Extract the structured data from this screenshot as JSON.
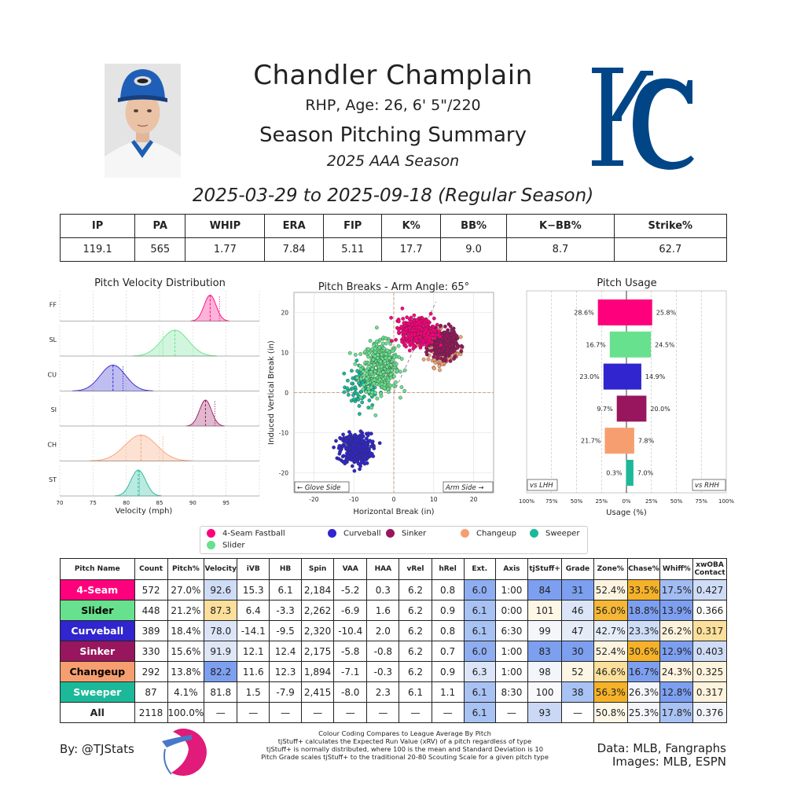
{
  "header": {
    "name": "Chandler Champlain",
    "subtitle": "RHP, Age: 26, 6' 5\"/220",
    "summary_title": "Season Pitching Summary",
    "season": "2025 AAA Season",
    "date_range": "2025-03-29 to 2025-09-18 (Regular Season)"
  },
  "stats": {
    "headers": [
      "IP",
      "PA",
      "WHIP",
      "ERA",
      "FIP",
      "K%",
      "BB%",
      "K−BB%",
      "Strike%"
    ],
    "values": [
      "119.1",
      "565",
      "1.77",
      "7.84",
      "5.11",
      "17.7",
      "9.0",
      "8.7",
      "62.7"
    ]
  },
  "colors": {
    "FF": "#FF007D",
    "SL": "#67E18D",
    "CU": "#3025CE",
    "SI": "#98165D",
    "CH": "#F79E70",
    "ST": "#1BB999",
    "kc_blue": "#004687"
  },
  "chart_data": [
    {
      "type": "area",
      "title": "Pitch Velocity Distribution",
      "xlabel": "Velocity (mph)",
      "xlim": [
        70,
        100
      ],
      "xticks": [
        70,
        75,
        80,
        85,
        90,
        95
      ],
      "series": [
        {
          "name": "FF",
          "mean": 92.6,
          "sd": 0.9,
          "league_mean": 94.0
        },
        {
          "name": "SL",
          "mean": 87.3,
          "sd": 2.0,
          "league_mean": 85.5
        },
        {
          "name": "CU",
          "mean": 78.0,
          "sd": 1.9,
          "league_mean": 79.5
        },
        {
          "name": "SI",
          "mean": 91.9,
          "sd": 0.9,
          "league_mean": 93.3
        },
        {
          "name": "CH",
          "mean": 82.2,
          "sd": 2.4,
          "league_mean": 85.5
        },
        {
          "name": "ST",
          "mean": 81.8,
          "sd": 1.1,
          "league_mean": 82.0
        }
      ]
    },
    {
      "type": "scatter",
      "title": "Pitch Breaks - Arm Angle: 65°",
      "xlabel": "Horizontal Break (in)",
      "ylabel": "Induced Vertical Break (in)",
      "xlim": [
        -25,
        25
      ],
      "ylim": [
        -25,
        25
      ],
      "xticks": [
        -20,
        -10,
        0,
        10,
        20
      ],
      "yticks": [
        -20,
        -10,
        0,
        10,
        20
      ],
      "annotations": [
        "← Glove Side",
        "Arm Side →"
      ],
      "series": [
        {
          "name": "ST",
          "count": 87,
          "hb": -7.9,
          "ivb": 1.5,
          "sx": 2.2,
          "sy": 2.6
        },
        {
          "name": "SL",
          "count": 448,
          "hb": -3.3,
          "ivb": 6.4,
          "sx": 2.2,
          "sy": 3.0
        },
        {
          "name": "CU",
          "count": 389,
          "hb": -9.5,
          "ivb": -14.1,
          "sx": 1.9,
          "sy": 1.9
        },
        {
          "name": "CH",
          "count": 292,
          "hb": 12.3,
          "ivb": 11.6,
          "sx": 1.7,
          "sy": 1.9
        },
        {
          "name": "SI",
          "count": 330,
          "hb": 12.4,
          "ivb": 12.1,
          "sx": 1.6,
          "sy": 1.7
        },
        {
          "name": "FF",
          "count": 572,
          "hb": 6.1,
          "ivb": 15.3,
          "sx": 2.0,
          "sy": 1.6
        }
      ]
    },
    {
      "type": "bar",
      "title": "Pitch Usage",
      "xlabel": "Usage (%)",
      "xlim": [
        -100,
        100
      ],
      "xticks": [
        "100%",
        "75%",
        "50%",
        "25%",
        "0%",
        "25%",
        "50%",
        "75%",
        "100%"
      ],
      "annotations": [
        "vs LHH",
        "vs RHH"
      ],
      "categories": [
        "FF",
        "SL",
        "CU",
        "SI",
        "CH",
        "ST"
      ],
      "series": [
        {
          "name": "vs LHH",
          "values": [
            28.6,
            16.7,
            23.0,
            9.7,
            21.7,
            0.3
          ]
        },
        {
          "name": "vs RHH",
          "values": [
            25.8,
            24.5,
            14.9,
            20.0,
            7.8,
            7.0
          ]
        }
      ]
    }
  ],
  "legend": [
    "4-Seam Fastball",
    "Curveball",
    "Sinker",
    "Changeup",
    "Sweeper",
    "Slider"
  ],
  "legend_codes": [
    "FF",
    "CU",
    "SI",
    "CH",
    "ST",
    "SL"
  ],
  "pitch_table": {
    "headers": [
      "Pitch Name",
      "Count",
      "Pitch%",
      "Velocity",
      "iVB",
      "HB",
      "Spin",
      "VAA",
      "HAA",
      "vRel",
      "hRel",
      "Ext.",
      "Axis",
      "tjStuff+",
      "Grade",
      "Zone%",
      "Chase%",
      "Whiff%",
      "xwOBA\nContact"
    ],
    "rows": [
      {
        "code": "FF",
        "cells": [
          "4-Seam",
          "572",
          "27.0%",
          "92.6",
          "15.3",
          "6.1",
          "2,184",
          "-5.2",
          "0.3",
          "6.2",
          "0.8",
          "6.0",
          "1:00",
          "84",
          "31",
          "52.4%",
          "33.5%",
          "17.5%",
          "0.427"
        ]
      },
      {
        "code": "SL",
        "cells": [
          "Slider",
          "448",
          "21.2%",
          "87.3",
          "6.4",
          "-3.3",
          "2,262",
          "-6.9",
          "1.6",
          "6.2",
          "0.9",
          "6.1",
          "0:00",
          "101",
          "46",
          "56.0%",
          "18.8%",
          "13.9%",
          "0.366"
        ]
      },
      {
        "code": "CU",
        "cells": [
          "Curveball",
          "389",
          "18.4%",
          "78.0",
          "-14.1",
          "-9.5",
          "2,320",
          "-10.4",
          "2.0",
          "6.2",
          "0.8",
          "6.1",
          "6:30",
          "99",
          "47",
          "42.7%",
          "23.3%",
          "26.2%",
          "0.317"
        ]
      },
      {
        "code": "SI",
        "cells": [
          "Sinker",
          "330",
          "15.6%",
          "91.9",
          "12.1",
          "12.4",
          "2,175",
          "-5.8",
          "-0.8",
          "6.2",
          "0.7",
          "6.0",
          "1:00",
          "83",
          "30",
          "52.4%",
          "30.6%",
          "12.9%",
          "0.403"
        ]
      },
      {
        "code": "CH",
        "cells": [
          "Changeup",
          "292",
          "13.8%",
          "82.2",
          "11.6",
          "12.3",
          "1,894",
          "-7.1",
          "-0.3",
          "6.2",
          "0.9",
          "6.3",
          "1:00",
          "98",
          "52",
          "46.6%",
          "16.7%",
          "24.3%",
          "0.325"
        ]
      },
      {
        "code": "ST",
        "cells": [
          "Sweeper",
          "87",
          "4.1%",
          "81.8",
          "1.5",
          "-7.9",
          "2,415",
          "-8.0",
          "2.3",
          "6.1",
          "1.1",
          "6.1",
          "8:30",
          "100",
          "38",
          "56.3%",
          "26.3%",
          "12.8%",
          "0.317"
        ]
      },
      {
        "code": "ALL",
        "cells": [
          "All",
          "2118",
          "100.0%",
          "—",
          "—",
          "—",
          "—",
          "—",
          "—",
          "—",
          "—",
          "6.1",
          "—",
          "93",
          "—",
          "50.8%",
          "25.3%",
          "17.8%",
          "0.376"
        ]
      }
    ],
    "cell_colors": {
      "FF": {
        "3": "#cfdcf5",
        "11": "#8faef1",
        "13": "#7d9ff0",
        "14": "#7d9ff0",
        "15": "#fdf4e0",
        "16": "#f5b228",
        "17": "#a2bcf3",
        "18": "#cfdcf5"
      },
      "SL": {
        "3": "#fbdf9a",
        "11": "#a8c2f3",
        "13": "#fef7e6",
        "14": "#dce5f7",
        "15": "#f6b735",
        "16": "#7d9ff0",
        "17": "#7d9ff0",
        "18": "#fcfcfc"
      },
      "CU": {
        "3": "#dbe5f7",
        "11": "#a8c2f3",
        "13": "#f4f6fb",
        "14": "#e5ecf8",
        "15": "#e6edf8",
        "16": "#cfdcf5",
        "17": "#fdf3dc",
        "18": "#fbdf9a"
      },
      "SI": {
        "3": "#dfe7f7",
        "11": "#8faef1",
        "13": "#7d9ff0",
        "14": "#7d9ff0",
        "15": "#fdf4e0",
        "16": "#f5b228",
        "17": "#7d9ff0",
        "18": "#cfdcf5"
      },
      "CH": {
        "3": "#7d9ff0",
        "11": "#dbe5f7",
        "13": "#f2f5fb",
        "14": "#fef6e4",
        "15": "#fbdf9a",
        "16": "#7d9ff0",
        "17": "#fef4e0",
        "18": "#fef3dc"
      },
      "ST": {
        "3": "#ffffff",
        "11": "#a8c2f3",
        "13": "#f9f9fb",
        "14": "#a8c2f3",
        "15": "#f5b228",
        "16": "#f4f6fb",
        "17": "#7d9ff0",
        "18": "#fef3dc"
      },
      "ALL": {
        "11": "#a8c2f3",
        "13": "#cad8f5",
        "15": "#fef7e8",
        "16": "#f3f5fb",
        "17": "#a8c2f3",
        "18": "#f1f5fb"
      }
    }
  },
  "footer": {
    "left": "By: @TJStats",
    "notes": [
      "Colour Coding Compares to League Average By Pitch",
      "tjStuff+ calculates the Expected Run Value (xRV) of a pitch regardless of type",
      "tjStuff+ is normally distributed, where 100 is the mean and Standard Deviation is 10",
      "Pitch Grade scales tjStuff+ to the traditional 20-80 Scouting Scale for a given pitch type"
    ],
    "right_line1": "Data: MLB, Fangraphs",
    "right_line2": "Images: MLB, ESPN"
  }
}
